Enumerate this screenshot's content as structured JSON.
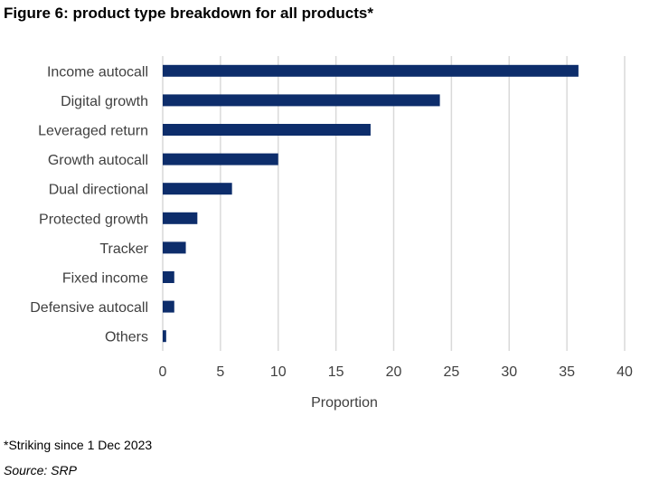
{
  "figure": {
    "title": "Figure 6: product type breakdown for all products*",
    "footnote": "*Striking since 1 Dec 2023",
    "source": "Source: SRP"
  },
  "colors": {
    "bar": "#0d2d6b",
    "grid": "#d9d9d9",
    "text": "#404040"
  },
  "chart_data": {
    "type": "bar",
    "orientation": "horizontal",
    "categories": [
      "Income autocall",
      "Digital growth",
      "Leveraged return",
      "Growth autocall",
      "Dual directional",
      "Protected growth",
      "Tracker",
      "Fixed income",
      "Defensive autocall",
      "Others"
    ],
    "values": [
      36,
      24,
      18,
      10,
      6,
      3,
      2,
      1,
      1,
      0.3
    ],
    "xlabel": "Proportion",
    "ylabel": "",
    "xlim": [
      0,
      40
    ],
    "xticks": [
      "0",
      "5",
      "10",
      "15",
      "20",
      "25",
      "30",
      "35",
      "40"
    ],
    "grid": "vertical"
  }
}
